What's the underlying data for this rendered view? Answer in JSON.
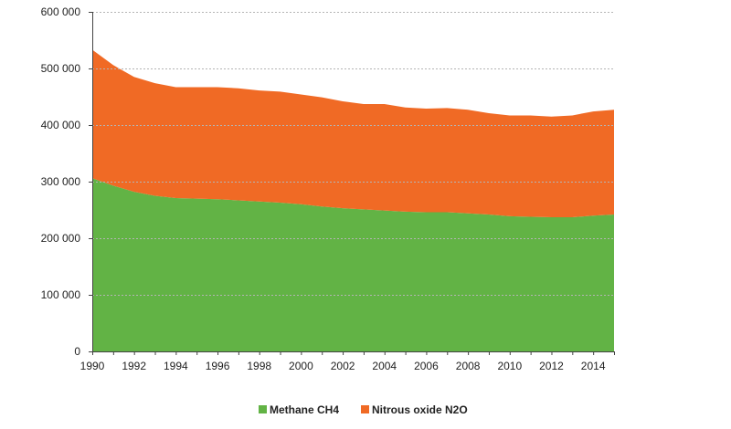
{
  "chart_data": {
    "type": "area",
    "stacked": true,
    "title": "",
    "xlabel": "",
    "ylabel": "",
    "x": [
      1990,
      1991,
      1992,
      1993,
      1994,
      1995,
      1996,
      1997,
      1998,
      1999,
      2000,
      2001,
      2002,
      2003,
      2004,
      2005,
      2006,
      2007,
      2008,
      2009,
      2010,
      2011,
      2012,
      2013,
      2014,
      2015
    ],
    "xlim": [
      1990,
      2015
    ],
    "ylim": [
      0,
      600000
    ],
    "x_ticks": [
      1990,
      1992,
      1994,
      1996,
      1998,
      2000,
      2002,
      2004,
      2006,
      2008,
      2010,
      2012,
      2014
    ],
    "x_tick_labels": [
      "1990",
      "1992",
      "1994",
      "1996",
      "1998",
      "2000",
      "2002",
      "2004",
      "2006",
      "2008",
      "2010",
      "2012",
      "2014"
    ],
    "y_ticks": [
      0,
      100000,
      200000,
      300000,
      400000,
      500000,
      600000
    ],
    "y_tick_labels": [
      "0",
      "100 000",
      "200 000",
      "300 000",
      "400 000",
      "500 000",
      "600 000"
    ],
    "grid": "horizontal dashed",
    "legend_position": "bottom",
    "series": [
      {
        "name": "Methane CH4",
        "color": "#62b345",
        "values": [
          306000,
          293000,
          282000,
          275000,
          271000,
          270000,
          269000,
          267000,
          265000,
          263000,
          260000,
          256000,
          253000,
          251000,
          249000,
          247000,
          246000,
          246000,
          244000,
          242000,
          239000,
          238000,
          237000,
          237000,
          240000,
          242000
        ]
      },
      {
        "name": "Nitrous oxide N2O",
        "color": "#f06a25",
        "values": [
          227000,
          213000,
          203000,
          199000,
          196000,
          197000,
          198000,
          198000,
          196000,
          196000,
          194000,
          193000,
          189000,
          186000,
          188000,
          184000,
          183000,
          184000,
          183000,
          179000,
          178000,
          179000,
          178000,
          180000,
          184000,
          185000
        ]
      }
    ]
  }
}
